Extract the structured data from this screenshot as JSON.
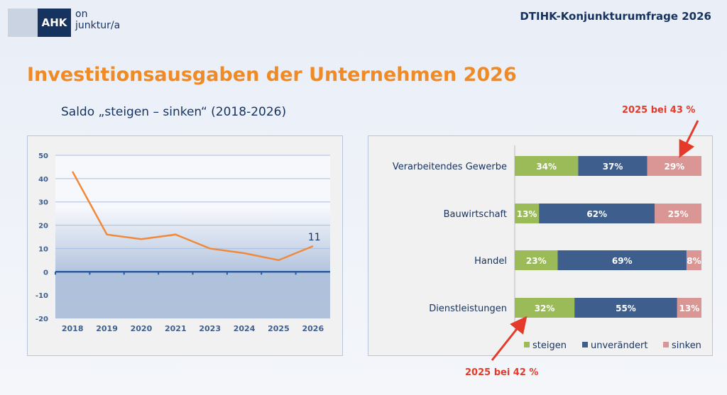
{
  "header": {
    "logo_brand": "AHK",
    "logo_text": "on\njunktur/a",
    "title": "DTIHK-Konjunkturumfrage 2026"
  },
  "page_title": "Investitionsausgaben der Unternehmen 2026",
  "chart_data": [
    {
      "type": "line",
      "title": "Saldo „steigen – sinken“ (2018-2026)",
      "categories": [
        "2018",
        "2019",
        "2020",
        "2021",
        "2023",
        "2024",
        "2025",
        "2026"
      ],
      "values": [
        43,
        16,
        14,
        16,
        10,
        8,
        5,
        11
      ],
      "data_labels": {
        "2026": "11"
      },
      "ylim": [
        -20,
        50
      ],
      "yticks": [
        50,
        40,
        30,
        20,
        10,
        0,
        -10,
        -20
      ],
      "grid": true,
      "line_color": "#f08a3a"
    },
    {
      "type": "bar",
      "orientation": "horizontal",
      "stacked": true,
      "categories": [
        "Verarbeitendes Gewerbe",
        "Bauwirtschaft",
        "Handel",
        "Dienstleistungen"
      ],
      "series": [
        {
          "name": "steigen",
          "color": "#9bbb59",
          "values": [
            34,
            13,
            23,
            32
          ]
        },
        {
          "name": "unverändert",
          "color": "#3e5e8e",
          "values": [
            37,
            62,
            69,
            55
          ]
        },
        {
          "name": "sinken",
          "color": "#d99694",
          "values": [
            29,
            25,
            8,
            13
          ]
        }
      ],
      "legend": "bottom",
      "annotations": [
        "2025 bei 43 %",
        "2025 bei 42 %"
      ]
    }
  ]
}
